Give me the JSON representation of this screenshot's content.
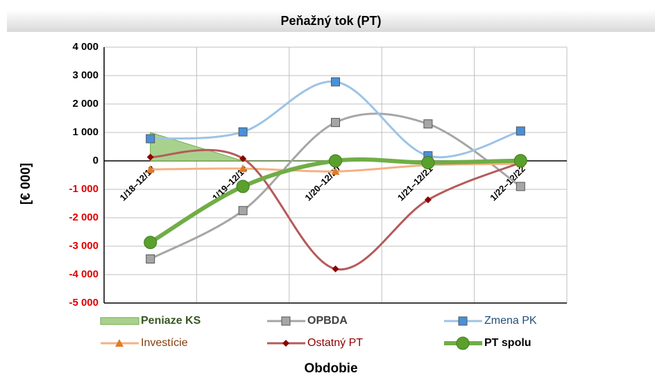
{
  "chart_data": {
    "type": "line",
    "title": "Peňažný tok (PT)",
    "ylabel": "[€ 000]",
    "xlabel": "Obdobie",
    "categories": [
      "1/18–12/18",
      "1/19–12/19",
      "1/20–12/20",
      "1/21–12/21",
      "1/22–12/22"
    ],
    "ylim": [
      -5000,
      4000
    ],
    "yticks": [
      {
        "value": -5000,
        "label": "-5 000"
      },
      {
        "value": -4000,
        "label": "-4 000"
      },
      {
        "value": -3000,
        "label": "-3 000"
      },
      {
        "value": -2000,
        "label": "-2 000"
      },
      {
        "value": -1000,
        "label": "-1 000"
      },
      0,
      {
        "value": 1000,
        "label": "1 000"
      },
      {
        "value": 2000,
        "label": "2 000"
      },
      {
        "value": 3000,
        "label": "3 000"
      },
      {
        "value": 4000,
        "label": "4 000"
      }
    ],
    "negative_tick_color": "#e00000",
    "grid": true,
    "series": [
      {
        "name": "Peniaze KS",
        "color": "#a9d18e",
        "marker": "area",
        "label_color": "#375623",
        "values": [
          1000,
          0,
          0,
          0,
          0
        ]
      },
      {
        "name": "OPBDA",
        "color": "#a6a6a6",
        "marker": "square",
        "label_color": "#404040",
        "values": [
          -3450,
          -1750,
          1350,
          1300,
          -900
        ]
      },
      {
        "name": "Zmena PK",
        "color": "#9dc3e6",
        "marker": "square",
        "marker_color": "#4a90d9",
        "label_color": "#1f4e79",
        "values": [
          780,
          1020,
          2780,
          180,
          1050
        ]
      },
      {
        "name": "Investície",
        "color": "#f4b183",
        "marker": "triangle",
        "marker_color": "#e07b28",
        "label_color": "#843c0c",
        "values": [
          -300,
          -270,
          -370,
          -150,
          -100
        ]
      },
      {
        "name": "Ostatný PT",
        "color": "#b55a5a",
        "marker": "diamond",
        "marker_color": "#8b0000",
        "label_color": "#8b0000",
        "values": [
          130,
          80,
          -3800,
          -1370,
          -60
        ]
      },
      {
        "name": "PT spolu",
        "color": "#70ad47",
        "marker": "circle",
        "marker_color": "#5aa02c",
        "label_color": "#000000",
        "values": [
          -2870,
          -900,
          0,
          -60,
          10
        ]
      }
    ]
  }
}
